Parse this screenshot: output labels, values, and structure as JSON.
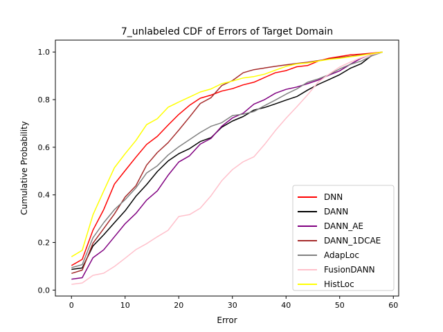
{
  "chart_data": {
    "type": "line",
    "title": "7_unlabeled CDF of Errors of Target Domain",
    "xlabel": "Error",
    "ylabel": "Cumulative Probability",
    "xlim": [
      -3,
      61
    ],
    "ylim": [
      -0.025,
      1.05
    ],
    "xticks": [
      "0",
      "10",
      "20",
      "30",
      "40",
      "50",
      "60"
    ],
    "xtick_values": [
      0,
      10,
      20,
      30,
      40,
      50,
      60
    ],
    "yticks": [
      "0.0",
      "0.2",
      "0.4",
      "0.6",
      "0.8",
      "1.0"
    ],
    "ytick_values": [
      0,
      0.2,
      0.4,
      0.6,
      0.8,
      1.0
    ],
    "grid": false,
    "legend_position": "lower-right",
    "x": [
      0,
      2,
      4,
      6,
      8,
      10,
      12,
      14,
      16,
      18,
      20,
      22,
      24,
      26,
      28,
      30,
      32,
      34,
      36,
      38,
      40,
      42,
      44,
      46,
      48,
      50,
      52,
      54,
      56,
      58
    ],
    "series": [
      {
        "name": "DNN",
        "color": "#ff0000",
        "values": [
          0.103,
          0.129,
          0.252,
          0.338,
          0.445,
          0.502,
          0.558,
          0.612,
          0.646,
          0.693,
          0.738,
          0.776,
          0.806,
          0.819,
          0.836,
          0.846,
          0.862,
          0.873,
          0.893,
          0.913,
          0.922,
          0.938,
          0.943,
          0.962,
          0.974,
          0.981,
          0.988,
          0.991,
          0.995,
          1.0
        ]
      },
      {
        "name": "DANN",
        "color": "#000000",
        "values": [
          0.087,
          0.093,
          0.185,
          0.232,
          0.283,
          0.333,
          0.394,
          0.443,
          0.498,
          0.542,
          0.573,
          0.594,
          0.624,
          0.64,
          0.684,
          0.71,
          0.729,
          0.756,
          0.767,
          0.782,
          0.798,
          0.813,
          0.84,
          0.864,
          0.884,
          0.905,
          0.932,
          0.951,
          0.986,
          1.0
        ]
      },
      {
        "name": "DANN_AE",
        "color": "#800080",
        "values": [
          0.046,
          0.052,
          0.136,
          0.169,
          0.224,
          0.279,
          0.322,
          0.378,
          0.417,
          0.482,
          0.538,
          0.564,
          0.613,
          0.637,
          0.688,
          0.723,
          0.743,
          0.781,
          0.8,
          0.827,
          0.843,
          0.853,
          0.867,
          0.882,
          0.903,
          0.921,
          0.949,
          0.974,
          0.99,
          1.0
        ]
      },
      {
        "name": "DANN_1DCAE",
        "color": "#a52a2a",
        "values": [
          0.07,
          0.084,
          0.197,
          0.258,
          0.32,
          0.391,
          0.438,
          0.525,
          0.578,
          0.619,
          0.672,
          0.727,
          0.784,
          0.808,
          0.859,
          0.88,
          0.913,
          0.926,
          0.933,
          0.94,
          0.946,
          0.952,
          0.957,
          0.964,
          0.97,
          0.977,
          0.982,
          0.988,
          0.993,
          1.0
        ]
      },
      {
        "name": "AdapLoc",
        "color": "#808080",
        "values": [
          0.094,
          0.107,
          0.22,
          0.283,
          0.338,
          0.38,
          0.429,
          0.492,
          0.522,
          0.567,
          0.602,
          0.632,
          0.662,
          0.688,
          0.703,
          0.733,
          0.739,
          0.75,
          0.775,
          0.798,
          0.823,
          0.845,
          0.873,
          0.887,
          0.905,
          0.929,
          0.948,
          0.962,
          0.984,
          1.0
        ]
      },
      {
        "name": "FusionDANN",
        "color": "#ffc0cb",
        "values": [
          0.024,
          0.03,
          0.062,
          0.071,
          0.099,
          0.134,
          0.17,
          0.195,
          0.224,
          0.251,
          0.309,
          0.317,
          0.344,
          0.396,
          0.459,
          0.506,
          0.539,
          0.56,
          0.612,
          0.67,
          0.722,
          0.77,
          0.82,
          0.874,
          0.907,
          0.937,
          0.958,
          0.976,
          0.989,
          1.0
        ]
      },
      {
        "name": "HistLoc",
        "color": "#ffff00",
        "values": [
          0.14,
          0.167,
          0.316,
          0.416,
          0.514,
          0.573,
          0.628,
          0.695,
          0.72,
          0.768,
          0.79,
          0.811,
          0.832,
          0.845,
          0.867,
          0.878,
          0.891,
          0.897,
          0.907,
          0.924,
          0.94,
          0.95,
          0.954,
          0.962,
          0.969,
          0.974,
          0.98,
          0.986,
          0.993,
          1.0
        ]
      }
    ]
  }
}
